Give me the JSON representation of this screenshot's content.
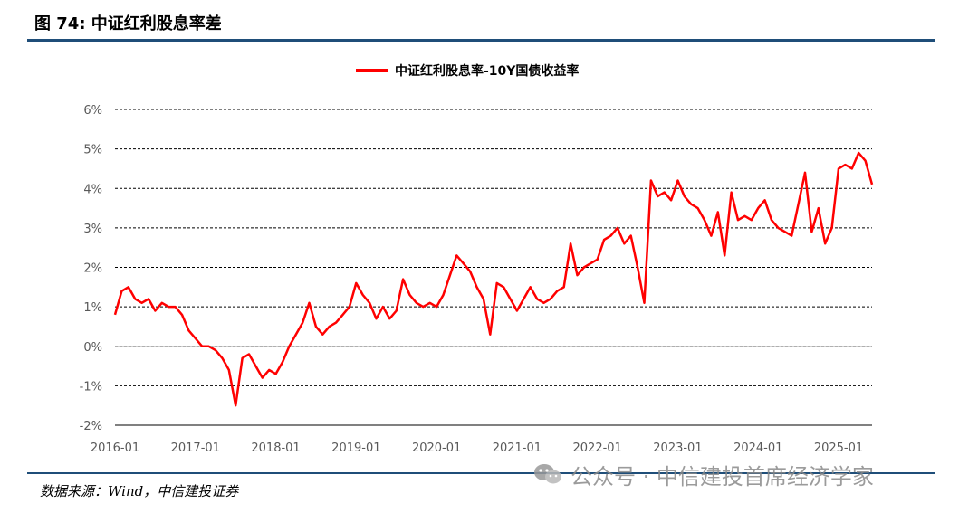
{
  "figure": {
    "title": "图 74:  中证红利股息率差",
    "source": "数据来源：Wind，中信建投证券",
    "watermark": "公众号 · 中信建投首席经济学家"
  },
  "colors": {
    "series": "#ff0000",
    "rule": "#1f4e79",
    "grid": "#000000"
  },
  "chart_data": {
    "type": "line",
    "title": "",
    "xlabel": "",
    "ylabel": "",
    "ylim": [
      -2,
      6
    ],
    "y_ticks": [
      -2,
      -1,
      0,
      1,
      2,
      3,
      4,
      5,
      6
    ],
    "y_tick_labels": [
      "-2%",
      "-1%",
      "0%",
      "1%",
      "2%",
      "3%",
      "4%",
      "5%",
      "6%"
    ],
    "x_ticks": [
      "2016-01",
      "2017-01",
      "2018-01",
      "2019-01",
      "2020-01",
      "2021-01",
      "2022-01",
      "2023-01",
      "2024-01",
      "2025-01"
    ],
    "xlim": [
      "2016-01",
      "2025-06"
    ],
    "grid": "horizontal-dashed",
    "legend": "top-center",
    "series": [
      {
        "name": "中证红利股息率-10Y国债收益率",
        "points": [
          [
            "2016-01",
            0.8
          ],
          [
            "2016-02",
            1.4
          ],
          [
            "2016-03",
            1.5
          ],
          [
            "2016-04",
            1.2
          ],
          [
            "2016-05",
            1.1
          ],
          [
            "2016-06",
            1.2
          ],
          [
            "2016-07",
            0.9
          ],
          [
            "2016-08",
            1.1
          ],
          [
            "2016-09",
            1.0
          ],
          [
            "2016-10",
            1.0
          ],
          [
            "2016-11",
            0.8
          ],
          [
            "2016-12",
            0.4
          ],
          [
            "2017-01",
            0.2
          ],
          [
            "2017-02",
            0.0
          ],
          [
            "2017-03",
            0.0
          ],
          [
            "2017-04",
            -0.1
          ],
          [
            "2017-05",
            -0.3
          ],
          [
            "2017-06",
            -0.6
          ],
          [
            "2017-07",
            -1.5
          ],
          [
            "2017-08",
            -0.3
          ],
          [
            "2017-09",
            -0.2
          ],
          [
            "2017-10",
            -0.5
          ],
          [
            "2017-11",
            -0.8
          ],
          [
            "2017-12",
            -0.6
          ],
          [
            "2018-01",
            -0.7
          ],
          [
            "2018-02",
            -0.4
          ],
          [
            "2018-03",
            0.0
          ],
          [
            "2018-04",
            0.3
          ],
          [
            "2018-05",
            0.6
          ],
          [
            "2018-06",
            1.1
          ],
          [
            "2018-07",
            0.5
          ],
          [
            "2018-08",
            0.3
          ],
          [
            "2018-09",
            0.5
          ],
          [
            "2018-10",
            0.6
          ],
          [
            "2018-11",
            0.8
          ],
          [
            "2018-12",
            1.0
          ],
          [
            "2019-01",
            1.6
          ],
          [
            "2019-02",
            1.3
          ],
          [
            "2019-03",
            1.1
          ],
          [
            "2019-04",
            0.7
          ],
          [
            "2019-05",
            1.0
          ],
          [
            "2019-06",
            0.7
          ],
          [
            "2019-07",
            0.9
          ],
          [
            "2019-08",
            1.7
          ],
          [
            "2019-09",
            1.3
          ],
          [
            "2019-10",
            1.1
          ],
          [
            "2019-11",
            1.0
          ],
          [
            "2019-12",
            1.1
          ],
          [
            "2020-01",
            1.0
          ],
          [
            "2020-02",
            1.3
          ],
          [
            "2020-03",
            1.8
          ],
          [
            "2020-04",
            2.3
          ],
          [
            "2020-05",
            2.1
          ],
          [
            "2020-06",
            1.9
          ],
          [
            "2020-07",
            1.5
          ],
          [
            "2020-08",
            1.2
          ],
          [
            "2020-09",
            0.3
          ],
          [
            "2020-10",
            1.6
          ],
          [
            "2020-11",
            1.5
          ],
          [
            "2020-12",
            1.2
          ],
          [
            "2021-01",
            0.9
          ],
          [
            "2021-02",
            1.2
          ],
          [
            "2021-03",
            1.5
          ],
          [
            "2021-04",
            1.2
          ],
          [
            "2021-05",
            1.1
          ],
          [
            "2021-06",
            1.2
          ],
          [
            "2021-07",
            1.4
          ],
          [
            "2021-08",
            1.5
          ],
          [
            "2021-09",
            2.6
          ],
          [
            "2021-10",
            1.8
          ],
          [
            "2021-11",
            2.0
          ],
          [
            "2021-12",
            2.1
          ],
          [
            "2022-01",
            2.2
          ],
          [
            "2022-02",
            2.7
          ],
          [
            "2022-03",
            2.8
          ],
          [
            "2022-04",
            3.0
          ],
          [
            "2022-05",
            2.6
          ],
          [
            "2022-06",
            2.8
          ],
          [
            "2022-07",
            2.0
          ],
          [
            "2022-08",
            1.1
          ],
          [
            "2022-09",
            4.2
          ],
          [
            "2022-10",
            3.8
          ],
          [
            "2022-11",
            3.9
          ],
          [
            "2022-12",
            3.7
          ],
          [
            "2023-01",
            4.2
          ],
          [
            "2023-02",
            3.8
          ],
          [
            "2023-03",
            3.6
          ],
          [
            "2023-04",
            3.5
          ],
          [
            "2023-05",
            3.2
          ],
          [
            "2023-06",
            2.8
          ],
          [
            "2023-07",
            3.4
          ],
          [
            "2023-08",
            2.3
          ],
          [
            "2023-09",
            3.9
          ],
          [
            "2023-10",
            3.2
          ],
          [
            "2023-11",
            3.3
          ],
          [
            "2023-12",
            3.2
          ],
          [
            "2024-01",
            3.5
          ],
          [
            "2024-02",
            3.7
          ],
          [
            "2024-03",
            3.2
          ],
          [
            "2024-04",
            3.0
          ],
          [
            "2024-05",
            2.9
          ],
          [
            "2024-06",
            2.8
          ],
          [
            "2024-07",
            3.6
          ],
          [
            "2024-08",
            4.4
          ],
          [
            "2024-09",
            2.9
          ],
          [
            "2024-10",
            3.5
          ],
          [
            "2024-11",
            2.6
          ],
          [
            "2024-12",
            3.0
          ],
          [
            "2025-01",
            4.5
          ],
          [
            "2025-02",
            4.6
          ],
          [
            "2025-03",
            4.5
          ],
          [
            "2025-04",
            4.9
          ],
          [
            "2025-05",
            4.7
          ],
          [
            "2025-06",
            4.1
          ]
        ]
      }
    ]
  }
}
